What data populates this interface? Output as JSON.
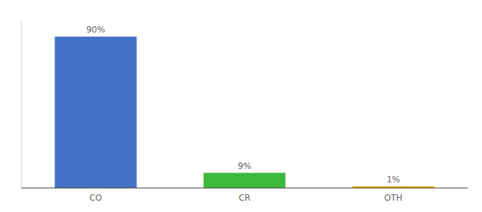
{
  "chart_data": {
    "type": "bar",
    "categories": [
      "CO",
      "CR",
      "OTH"
    ],
    "values": [
      90,
      9,
      1
    ],
    "value_labels": [
      "90%",
      "9%",
      "1%"
    ],
    "data_labels": true,
    "colors": [
      "#4472c4",
      "#3dba3d",
      "#f0a500"
    ],
    "ylim": [
      0,
      100
    ],
    "tick_labels": "x",
    "grid": false
  }
}
